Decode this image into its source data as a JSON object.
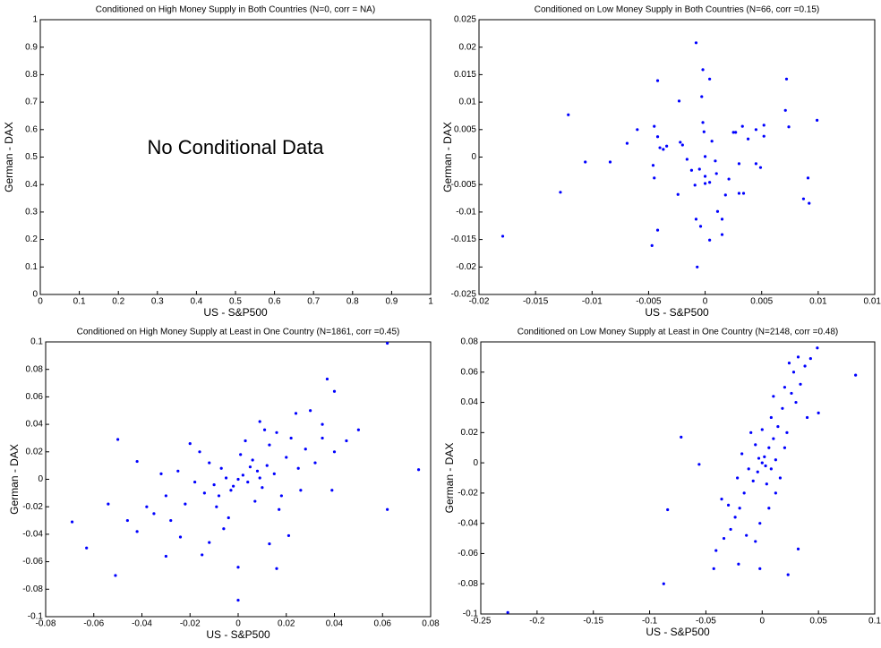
{
  "chart_data": [
    {
      "type": "scatter",
      "title": "Conditioned on High Money Supply in Both Countries (N=0, corr = NA)",
      "x_label": "US - S&P500",
      "y_label": "German - DAX",
      "annotation": "No Conditional Data",
      "xlim": [
        0,
        1
      ],
      "xticks": [
        0,
        0.1,
        0.2,
        0.3,
        0.4,
        0.5,
        0.6,
        0.7,
        0.8,
        0.9,
        1
      ],
      "ylim": [
        0,
        1
      ],
      "yticks": [
        0,
        0.1,
        0.2,
        0.3,
        0.4,
        0.5,
        0.6,
        0.7,
        0.8,
        0.9,
        1
      ],
      "color": "#0000ff"
    },
    {
      "type": "scatter",
      "title": "Conditioned on Low Money Supply in Both Countries (N=66, corr =0.15)",
      "x_label": "US - S&P500",
      "y_label": "German - DAX",
      "xlim": [
        -0.02,
        0.015
      ],
      "xticks": [
        -0.02,
        -0.015,
        -0.01,
        -0.005,
        0,
        0.005,
        0.01,
        0.015
      ],
      "ylim": [
        -0.025,
        0.025
      ],
      "yticks": [
        -0.025,
        -0.02,
        -0.015,
        -0.01,
        -0.005,
        0,
        0.005,
        0.01,
        0.015,
        0.02,
        0.025
      ],
      "color": "#0000ff",
      "x": [
        -0.0179,
        -0.0121,
        -0.0128,
        -0.0106,
        -0.0084,
        -0.0069,
        -0.006,
        -0.0045,
        -0.0042,
        -0.0042,
        -0.0046,
        -0.0045,
        -0.0042,
        -0.0047,
        -0.004,
        -0.0037,
        -0.0034,
        -0.0023,
        -0.0022,
        -0.002,
        -0.0024,
        -0.0016,
        -0.0012,
        -0.0009,
        -0.0008,
        -0.0005,
        -0.0008,
        -0.0004,
        -0.0007,
        -0.0002,
        -0.0003,
        -0.0001,
        -0.0002,
        0,
        0,
        0,
        0.0004,
        0.0006,
        0.0004,
        0.0009,
        0.001,
        0.0011,
        0.0004,
        0.0015,
        0.0015,
        0.0018,
        0.0021,
        0.0025,
        0.0027,
        0.003,
        0.003,
        0.0034,
        0.0038,
        0.0045,
        0.0045,
        0.0049,
        0.0052,
        0.0052,
        0.0072,
        0.0071,
        0.0074,
        0.0091,
        0.0087,
        0.0092,
        0.0099,
        0.0033
      ],
      "y": [
        -0.0144,
        0.0077,
        -0.0064,
        -0.0009,
        -0.0009,
        0.0025,
        0.005,
        0.0056,
        0.0139,
        0.0037,
        -0.0015,
        -0.0038,
        -0.0133,
        -0.0161,
        0.0017,
        0.0014,
        0.002,
        0.0102,
        0.0027,
        0.0022,
        -0.0068,
        -0.0004,
        -0.0024,
        -0.0051,
        0.0208,
        -0.0022,
        -0.0113,
        -0.0126,
        -0.02,
        0.0159,
        0.011,
        0.0046,
        0.0063,
        0.0001,
        -0.0035,
        -0.0048,
        0.0142,
        0.0029,
        -0.0046,
        -0.0007,
        -0.003,
        -0.0099,
        -0.0151,
        -0.0141,
        -0.0113,
        -0.0069,
        -0.004,
        0.0045,
        0.0045,
        -0.0012,
        -0.0066,
        -0.0066,
        0.0033,
        -0.0012,
        0.005,
        -0.0019,
        0.0038,
        0.0058,
        0.0142,
        0.0085,
        0.0055,
        -0.0038,
        -0.0076,
        -0.0084,
        0.0067,
        0.0056
      ]
    },
    {
      "type": "scatter",
      "title": "Conditioned on High Money Supply at Least in One Country (N=1861, corr =0.45)",
      "x_label": "US - S&P500",
      "y_label": "German - DAX",
      "xlim": [
        -0.08,
        0.08
      ],
      "xticks": [
        -0.08,
        -0.06,
        -0.04,
        -0.02,
        0,
        0.02,
        0.04,
        0.06,
        0.08
      ],
      "ylim": [
        -0.1,
        0.1
      ],
      "yticks": [
        -0.1,
        -0.08,
        -0.06,
        -0.04,
        -0.02,
        0,
        0.02,
        0.04,
        0.06,
        0.08,
        0.1
      ],
      "color": "#0000ff",
      "x": [
        0.062,
        0.075,
        0.062,
        0.05,
        0.037,
        0.04,
        0.035,
        0.039,
        -0.069,
        -0.063,
        -0.051,
        -0.05,
        -0.054,
        -0.042,
        0,
        0,
        0.013,
        0.016,
        -0.03,
        -0.015,
        0.021,
        0.002,
        -0.005,
        0.008,
        -0.01,
        0.012,
        -0.003,
        0.004,
        0.015,
        -0.014,
        0.006,
        -0.007,
        0.01,
        0.001,
        -0.018,
        0.02,
        -0.022,
        0.025,
        -0.012,
        0.018,
        -0.025,
        0.028,
        -0.03,
        0.007,
        -0.009,
        0.013,
        -0.016,
        0.032,
        -0.035,
        0.022,
        -0.028,
        0.003,
        -0.004,
        0.035,
        -0.038,
        0.017,
        -0.02,
        0.04,
        -0.042,
        0.011,
        -0.006,
        0.026,
        -0.024,
        0.03,
        -0.032,
        0.009,
        0.045,
        -0.046,
        0.024,
        -0.012,
        0.016,
        0.005,
        -0.002,
        0,
        0.009,
        -0.008
      ],
      "y": [
        0.099,
        0.007,
        -0.022,
        0.036,
        0.073,
        0.064,
        0.03,
        -0.008,
        -0.031,
        -0.05,
        -0.07,
        0.029,
        -0.018,
        0.013,
        -0.088,
        -0.064,
        -0.047,
        -0.065,
        -0.056,
        -0.055,
        -0.041,
        0.003,
        0.001,
        0.006,
        -0.004,
        0.01,
        -0.008,
        -0.002,
        0.004,
        -0.01,
        0.014,
        0.008,
        -0.006,
        0.018,
        -0.002,
        0.016,
        -0.018,
        0.008,
        0.012,
        -0.012,
        0.006,
        0.022,
        -0.012,
        -0.016,
        -0.02,
        0.025,
        0.02,
        0.012,
        -0.025,
        0.03,
        -0.03,
        0.028,
        -0.028,
        0.04,
        -0.02,
        -0.022,
        0.026,
        0.02,
        -0.038,
        0.036,
        -0.036,
        -0.008,
        -0.042,
        0.05,
        0.004,
        0.042,
        0.028,
        -0.03,
        0.048,
        -0.046,
        0.034,
        0.009,
        -0.005,
        0,
        0.001,
        -0.012
      ]
    },
    {
      "type": "scatter",
      "title": "Conditioned on Low Money Supply at Least in One Country (N=2148, corr =0.48)",
      "x_label": "US - S&P500",
      "y_label": "German - DAX",
      "xlim": [
        -0.25,
        0.1
      ],
      "xticks": [
        -0.25,
        -0.2,
        -0.15,
        -0.1,
        -0.05,
        0,
        0.05,
        0.1
      ],
      "ylim": [
        -0.1,
        0.08
      ],
      "yticks": [
        -0.1,
        -0.08,
        -0.06,
        -0.04,
        -0.02,
        0,
        0.02,
        0.04,
        0.06,
        0.08
      ],
      "color": "#0000ff",
      "x": [
        -0.226,
        -0.0875,
        -0.072,
        -0.056,
        -0.084,
        0.083,
        0.049,
        0.043,
        0.05,
        0.032,
        0.023,
        -0.002,
        -0.021,
        -0.041,
        -0.043,
        0.002,
        -0.004,
        0.006,
        -0.008,
        0.01,
        -0.012,
        0.004,
        0.014,
        -0.016,
        0.008,
        -0.006,
        0.012,
        0,
        -0.02,
        0.018,
        -0.024,
        0.022,
        -0.01,
        0.016,
        -0.028,
        0.026,
        -0.014,
        0.02,
        0.03,
        -0.03,
        0.028,
        -0.018,
        0.006,
        -0.002,
        0.034,
        0.024,
        0.032,
        -0.034,
        0.01,
        -0.022,
        0,
        0.003,
        -0.003,
        0.008,
        -0.036,
        0.04,
        0.038,
        0.012,
        -0.006,
        0.02
      ],
      "y": [
        -0.099,
        -0.08,
        0.017,
        -0.001,
        -0.031,
        0.058,
        0.076,
        0.069,
        0.033,
        -0.057,
        -0.074,
        -0.07,
        -0.067,
        -0.058,
        -0.07,
        0.004,
        -0.006,
        0.01,
        -0.012,
        0.016,
        -0.004,
        -0.014,
        0.024,
        -0.02,
        0.03,
        0.012,
        0.002,
        0.022,
        -0.03,
        0.036,
        -0.036,
        0.02,
        0.02,
        -0.01,
        -0.044,
        0.046,
        -0.048,
        0.05,
        0.04,
        -0.028,
        0.06,
        0.006,
        -0.03,
        -0.04,
        0.052,
        0.066,
        0.07,
        -0.05,
        0.044,
        -0.01,
        0,
        -0.002,
        0.003,
        -0.004,
        -0.024,
        0.03,
        0.064,
        -0.02,
        -0.052,
        0.01
      ]
    }
  ]
}
